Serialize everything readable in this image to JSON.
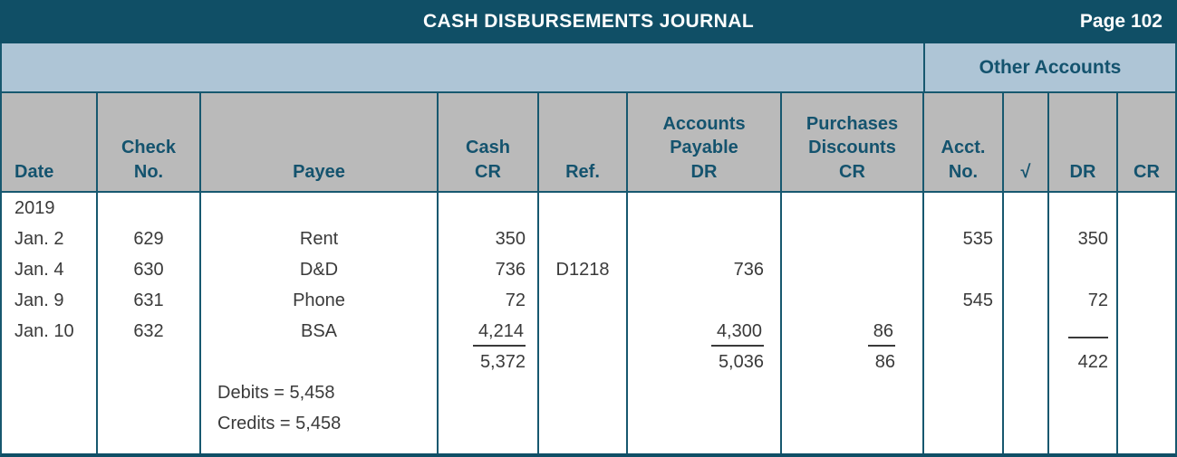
{
  "title_bar": {
    "title": "CASH DISBURSEMENTS JOURNAL",
    "page": "Page 102"
  },
  "band": {
    "other_accounts": "Other Accounts"
  },
  "headers": {
    "date": "Date",
    "check_no": "Check\nNo.",
    "payee": "Payee",
    "cash_cr": "Cash\nCR",
    "ref": "Ref.",
    "accounts_payable_dr": "Accounts\nPayable\nDR",
    "purchases_discounts_cr": "Purchases\nDiscounts\nCR",
    "acct_no": "Acct.\nNo.",
    "checkmark": "√",
    "other_dr": "DR",
    "other_cr": "CR"
  },
  "rows": [
    {
      "date": "2019"
    },
    {
      "date": "Jan. 2",
      "check_no": "629",
      "payee": "Rent",
      "cash_cr": "350",
      "acct_no": "535",
      "other_dr": "350"
    },
    {
      "date": "Jan. 4",
      "check_no": "630",
      "payee": "D&D",
      "cash_cr": "736",
      "ref": "D1218",
      "accounts_payable_dr": "736"
    },
    {
      "date": "Jan. 9",
      "check_no": "631",
      "payee": "Phone",
      "cash_cr": "72",
      "acct_no": "545",
      "other_dr": "72"
    },
    {
      "date": "Jan. 10",
      "check_no": "632",
      "payee": "BSA",
      "cash_cr": "4,214",
      "accounts_payable_dr": "4,300",
      "purchases_discounts_cr": "86"
    },
    {
      "cash_cr": "5,372",
      "accounts_payable_dr": "5,036",
      "purchases_discounts_cr": "86",
      "other_dr": "422"
    },
    {
      "payee": "Debits = 5,458"
    },
    {
      "payee": "Credits = 5,458"
    }
  ],
  "colors": {
    "title_bar_bg": "#104F66",
    "band_bg": "#AEC5D6",
    "header_bg": "#BABABA",
    "border": "#17586F",
    "header_text": "#14536E",
    "data_text": "#3A3A3A"
  }
}
